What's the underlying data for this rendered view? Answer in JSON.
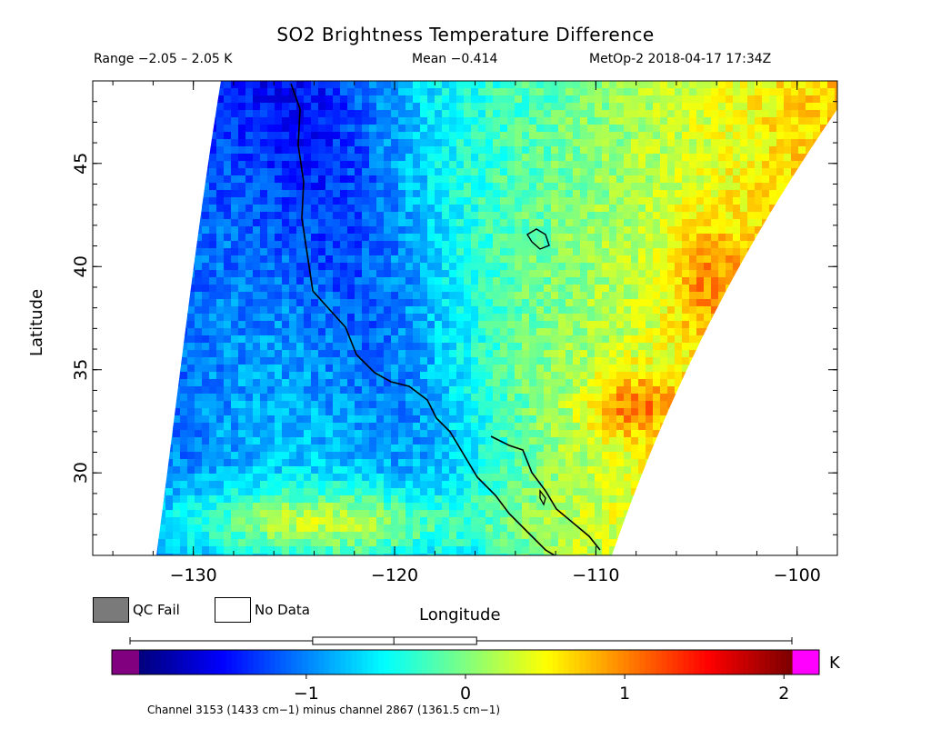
{
  "title": "SO2 Brightness Temperature Difference",
  "header": {
    "range": "Range −2.05 – 2.05 K",
    "mean": "Mean −0.414",
    "satellite_time": "MetOp-2 2018-04-17 17:34Z"
  },
  "axes": {
    "xlabel": "Longitude",
    "ylabel": "Latitude",
    "x_ticks": [
      "−130",
      "−120",
      "−110",
      "−100"
    ],
    "y_ticks": [
      "45",
      "40",
      "35",
      "30"
    ],
    "x_range": [
      -135,
      -98
    ],
    "y_range": [
      26,
      49
    ]
  },
  "legend": {
    "qc_fail": "QC Fail",
    "no_data": "No Data",
    "qc_fail_color": "#7a7a7a",
    "no_data_color": "#ffffff"
  },
  "colorbar": {
    "unit": "K",
    "ticks": [
      "−1",
      "0",
      "1",
      "2"
    ],
    "tick_values": [
      -1,
      0,
      1,
      2
    ],
    "range": [
      -2.05,
      2.05
    ],
    "under_color": "#800080",
    "over_color": "#ff00ff",
    "boxplot": {
      "min": -2.05,
      "q1": -0.96,
      "median": -0.45,
      "q3": 0.07,
      "max": 2.05
    }
  },
  "footnote": "Channel 3153 (1433 cm−1) minus channel 2867 (1361.5 cm−1)",
  "map": {
    "region": "US West Coast / Baja California",
    "field": "BTD swath, low (blue) off coast, high (orange/red) over inland southwest"
  }
}
